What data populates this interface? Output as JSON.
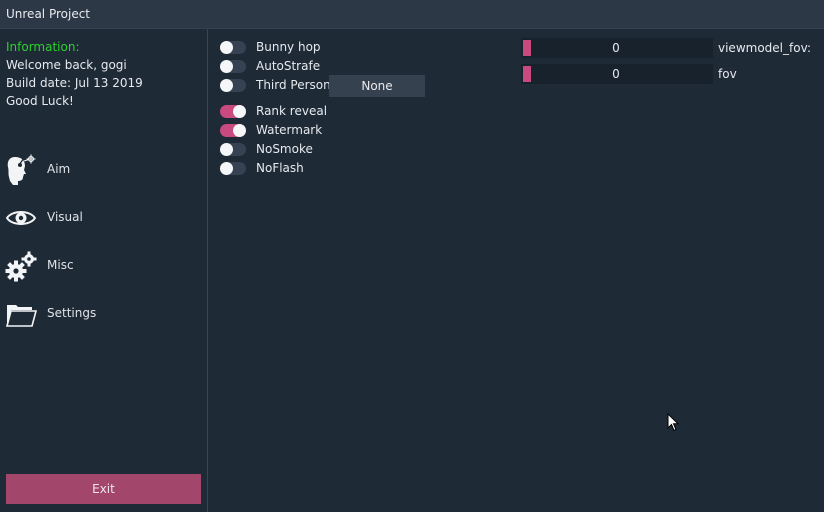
{
  "window": {
    "title": "Unreal Project"
  },
  "info": {
    "header": "Information:",
    "welcome": "Welcome back, gogi",
    "build_date": "Build date: Jul 13 2019",
    "good_luck": "Good Luck!"
  },
  "nav": {
    "aim": {
      "label": "Aim",
      "icon": "crosshair-head-icon"
    },
    "visual": {
      "label": "Visual",
      "icon": "eye-icon"
    },
    "misc": {
      "label": "Misc",
      "icon": "gears-icon"
    },
    "settings": {
      "label": "Settings",
      "icon": "folder-icon"
    }
  },
  "exit_label": "Exit",
  "toggles": {
    "bunny_hop": {
      "label": "Bunny hop",
      "on": false
    },
    "autostrafe": {
      "label": "AutoStrafe",
      "on": false
    },
    "third_person": {
      "label": "Third Person",
      "on": false
    },
    "rank_reveal": {
      "label": "Rank reveal",
      "on": true
    },
    "watermark": {
      "label": "Watermark",
      "on": true
    },
    "nosmoke": {
      "label": "NoSmoke",
      "on": false
    },
    "noflash": {
      "label": "NoFlash",
      "on": false
    }
  },
  "third_person_key": {
    "value": "None"
  },
  "sliders": {
    "viewmodel_fov": {
      "label": "viewmodel_fov:",
      "value": "0"
    },
    "fov": {
      "label": "fov",
      "value": "0"
    }
  },
  "colors": {
    "accent": "#c94a7f",
    "exit_button": "#a3466c",
    "info_header": "#2ed12e",
    "background": "#1f2a37"
  }
}
